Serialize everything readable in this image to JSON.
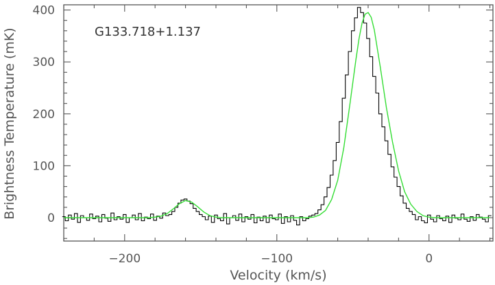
{
  "chart_data": {
    "type": "line",
    "annotation": "G133.718+1.137",
    "xlabel": "Velocity (km/s)",
    "ylabel": "Brightness Temperature (mK)",
    "xlim": [
      -240,
      42
    ],
    "ylim": [
      -45,
      410
    ],
    "x_ticks": [
      -200,
      -100,
      0
    ],
    "x_tick_labels": [
      "−200",
      "−100",
      "0"
    ],
    "y_ticks": [
      0,
      100,
      200,
      300,
      400
    ],
    "y_tick_labels": [
      "0",
      "100",
      "200",
      "300",
      "400"
    ],
    "grid": false,
    "legend": "none",
    "series": [
      {
        "style": "step",
        "color": "#000000",
        "x": [
          -240,
          -238,
          -236,
          -234,
          -232,
          -230,
          -228,
          -226,
          -224,
          -222,
          -220,
          -218,
          -216,
          -214,
          -212,
          -210,
          -208,
          -206,
          -204,
          -202,
          -200,
          -198,
          -196,
          -194,
          -192,
          -190,
          -188,
          -186,
          -184,
          -182,
          -180,
          -178,
          -176,
          -174,
          -172,
          -170,
          -168,
          -166,
          -164,
          -162,
          -160,
          -158,
          -156,
          -154,
          -152,
          -150,
          -148,
          -146,
          -144,
          -142,
          -140,
          -138,
          -136,
          -134,
          -132,
          -130,
          -128,
          -126,
          -124,
          -122,
          -120,
          -118,
          -116,
          -114,
          -112,
          -110,
          -108,
          -106,
          -104,
          -102,
          -100,
          -98,
          -96,
          -94,
          -92,
          -90,
          -88,
          -86,
          -84,
          -82,
          -80,
          -78,
          -76,
          -74,
          -72,
          -70,
          -68,
          -66,
          -64,
          -62,
          -60,
          -58,
          -56,
          -54,
          -52,
          -50,
          -48,
          -46,
          -44,
          -42,
          -40,
          -38,
          -36,
          -34,
          -32,
          -30,
          -28,
          -26,
          -24,
          -22,
          -20,
          -18,
          -16,
          -14,
          -12,
          -10,
          -8,
          -6,
          -4,
          -2,
          0,
          2,
          4,
          6,
          8,
          10,
          12,
          14,
          16,
          18,
          20,
          22,
          24,
          26,
          28,
          30,
          32,
          34,
          36,
          38,
          40
        ],
        "y": [
          2,
          -6,
          5,
          -3,
          8,
          -9,
          4,
          0,
          -5,
          7,
          -2,
          3,
          -8,
          6,
          -1,
          -7,
          9,
          -4,
          2,
          -3,
          6,
          -9,
          0,
          5,
          -4,
          8,
          -6,
          1,
          -2,
          7,
          -5,
          3,
          -1,
          9,
          4,
          6,
          12,
          20,
          28,
          34,
          36,
          32,
          27,
          18,
          12,
          6,
          2,
          -4,
          3,
          -9,
          5,
          -2,
          -6,
          8,
          -12,
          0,
          4,
          -5,
          7,
          -8,
          2,
          -3,
          6,
          -10,
          1,
          -6,
          3,
          -9,
          5,
          -2,
          -4,
          7,
          -11,
          2,
          -8,
          4,
          -5,
          -14,
          2,
          -6,
          -2,
          3,
          5,
          8,
          15,
          25,
          40,
          58,
          82,
          110,
          145,
          185,
          230,
          275,
          320,
          360,
          385,
          405,
          395,
          375,
          345,
          310,
          272,
          240,
          200,
          175,
          148,
          122,
          98,
          78,
          60,
          42,
          28,
          18,
          12,
          6,
          -4,
          2,
          -6,
          -10,
          5,
          -3,
          -8,
          4,
          -2,
          -6,
          3,
          -9,
          5,
          -1,
          -4,
          7,
          -3,
          -7,
          2,
          -5,
          6,
          1,
          -3,
          -8,
          4
        ]
      },
      {
        "style": "smooth",
        "color": "#33dd33",
        "x": [
          -240,
          -236,
          -232,
          -228,
          -224,
          -220,
          -216,
          -212,
          -208,
          -204,
          -200,
          -196,
          -192,
          -188,
          -184,
          -180,
          -176,
          -172,
          -168,
          -164,
          -160,
          -156,
          -152,
          -148,
          -144,
          -140,
          -136,
          -132,
          -128,
          -124,
          -120,
          -116,
          -112,
          -108,
          -104,
          -100,
          -96,
          -92,
          -88,
          -84,
          -80,
          -76,
          -72,
          -68,
          -64,
          -60,
          -56,
          -52,
          -48,
          -46,
          -44,
          -42,
          -40,
          -38,
          -36,
          -32,
          -28,
          -24,
          -20,
          -16,
          -12,
          -8,
          -4,
          0,
          4,
          8,
          12,
          16,
          20,
          24,
          28,
          32,
          36,
          40
        ],
        "y": [
          0,
          0,
          0,
          0,
          0,
          0,
          0,
          0,
          0,
          0,
          0,
          0,
          0,
          0,
          0,
          1,
          3,
          8,
          17,
          27,
          33,
          30,
          21,
          11,
          4,
          1,
          0,
          0,
          0,
          0,
          0,
          0,
          0,
          0,
          0,
          0,
          0,
          0,
          0,
          0,
          0,
          1,
          5,
          14,
          35,
          72,
          135,
          218,
          305,
          345,
          375,
          392,
          395,
          386,
          362,
          290,
          212,
          146,
          90,
          50,
          26,
          12,
          4,
          1,
          0,
          0,
          0,
          0,
          0,
          0,
          0,
          0,
          0,
          0
        ]
      }
    ]
  }
}
